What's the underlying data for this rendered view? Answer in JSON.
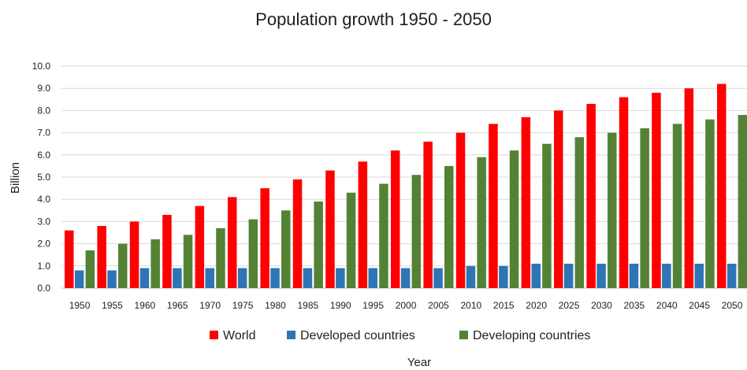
{
  "chart_data": {
    "type": "bar",
    "title": "Population growth 1950 - 2050",
    "xlabel": "Year",
    "ylabel": "Billion",
    "ylim": [
      0,
      10
    ],
    "yticks": [
      "0.0",
      "1.0",
      "2.0",
      "3.0",
      "4.0",
      "5.0",
      "6.0",
      "7.0",
      "8.0",
      "9.0",
      "10.0"
    ],
    "grid": true,
    "legend_position": "bottom",
    "categories": [
      "1950",
      "1955",
      "1960",
      "1965",
      "1970",
      "1975",
      "1980",
      "1985",
      "1990",
      "1995",
      "2000",
      "2005",
      "2010",
      "2015",
      "2020",
      "2025",
      "2030",
      "2035",
      "2040",
      "2045",
      "2050"
    ],
    "series": [
      {
        "name": "World",
        "color": "#ff0000",
        "values": [
          2.6,
          2.8,
          3.0,
          3.3,
          3.7,
          4.1,
          4.5,
          4.9,
          5.3,
          5.7,
          6.2,
          6.6,
          7.0,
          7.4,
          7.7,
          8.0,
          8.3,
          8.6,
          8.8,
          9.0,
          9.2
        ]
      },
      {
        "name": "Developed countries",
        "color": "#2e75b6",
        "values": [
          0.8,
          0.8,
          0.9,
          0.9,
          0.9,
          0.9,
          0.9,
          0.9,
          0.9,
          0.9,
          0.9,
          0.9,
          1.0,
          1.0,
          1.1,
          1.1,
          1.1,
          1.1,
          1.1,
          1.1,
          1.1
        ]
      },
      {
        "name": "Developing countries",
        "color": "#548235",
        "values": [
          1.7,
          2.0,
          2.2,
          2.4,
          2.7,
          3.1,
          3.5,
          3.9,
          4.3,
          4.7,
          5.1,
          5.5,
          5.9,
          6.2,
          6.5,
          6.8,
          7.0,
          7.2,
          7.4,
          7.6,
          7.8
        ]
      }
    ]
  }
}
